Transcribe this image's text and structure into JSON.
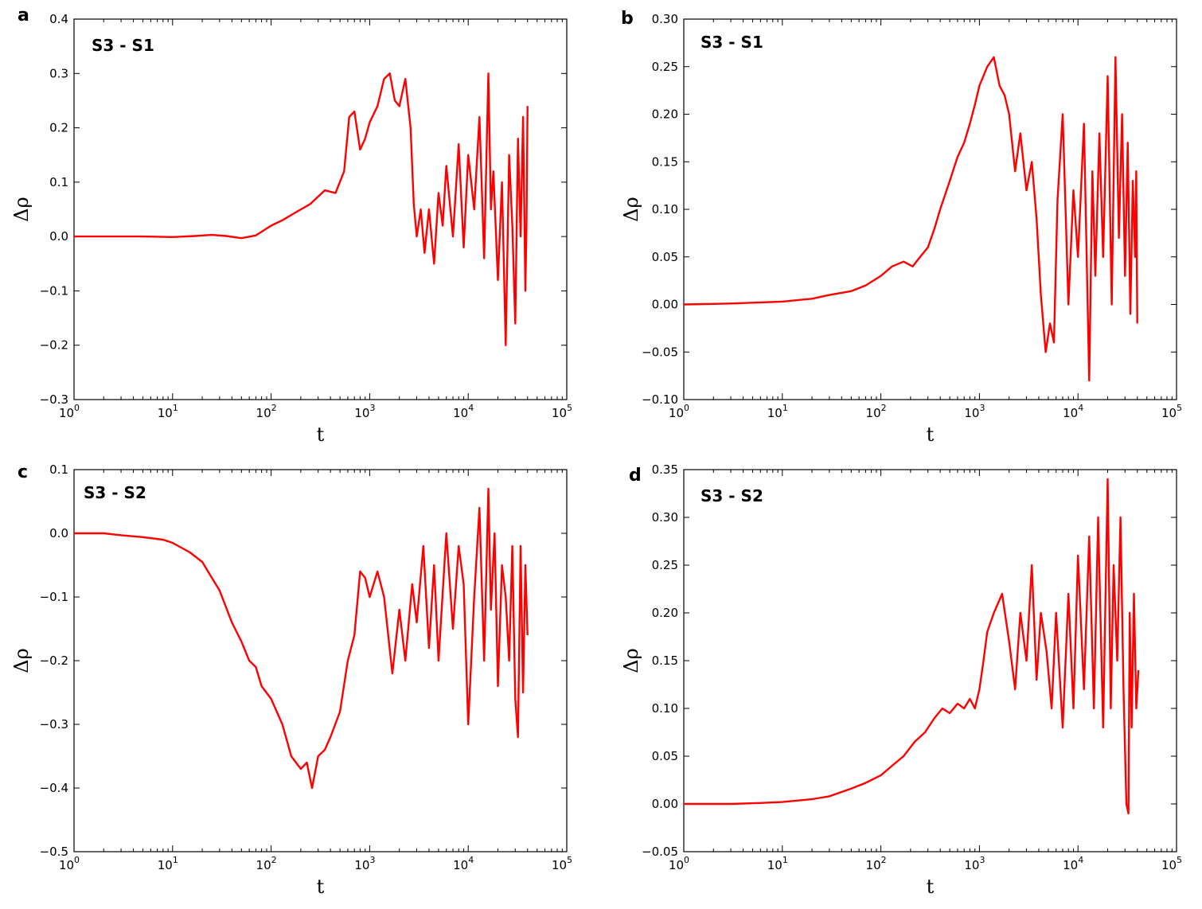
{
  "chart_data": [
    {
      "panel": "a",
      "type": "line",
      "annotation": "S3 - S1",
      "xlabel": "t",
      "ylabel": "Δρ",
      "xscale": "log",
      "xlim": [
        1,
        100000
      ],
      "ylim": [
        -0.3,
        0.4
      ],
      "yticks": [
        "−0.3",
        "−0.2",
        "−0.1",
        "0.0",
        "0.1",
        "0.2",
        "0.3",
        "0.4"
      ],
      "xticks": [
        {
          "base": "10",
          "exp": "0"
        },
        {
          "base": "10",
          "exp": "1"
        },
        {
          "base": "10",
          "exp": "2"
        },
        {
          "base": "10",
          "exp": "3"
        },
        {
          "base": "10",
          "exp": "4"
        },
        {
          "base": "10",
          "exp": "5"
        }
      ],
      "grid": false,
      "color": "#ff0000",
      "series": [
        {
          "x": [
            1,
            5,
            10,
            17,
            25,
            35,
            50,
            70,
            100,
            130,
            180,
            250,
            350,
            450,
            550,
            620,
            700,
            800,
            900,
            1000,
            1200,
            1400,
            1600,
            1800,
            2000,
            2300,
            2600,
            2800,
            3000,
            3300,
            3600,
            4000,
            4500,
            5000,
            5500,
            6000,
            7000,
            8000,
            9000,
            10000,
            11500,
            13000,
            14500,
            16000,
            17000,
            18000,
            20000,
            22000,
            24000,
            26000,
            28000,
            30000,
            32000,
            34000,
            36000,
            38000,
            39000,
            40000
          ],
          "y": [
            0.0,
            0.0,
            -0.001,
            0.001,
            0.003,
            0.001,
            -0.003,
            0.002,
            0.02,
            0.03,
            0.045,
            0.06,
            0.085,
            0.08,
            0.12,
            0.22,
            0.23,
            0.16,
            0.18,
            0.21,
            0.24,
            0.29,
            0.3,
            0.25,
            0.24,
            0.29,
            0.2,
            0.06,
            0.0,
            0.05,
            -0.03,
            0.05,
            -0.05,
            0.08,
            0.02,
            0.13,
            0.0,
            0.17,
            -0.02,
            0.15,
            0.05,
            0.22,
            -0.04,
            0.3,
            0.05,
            0.12,
            -0.08,
            0.1,
            -0.2,
            0.15,
            0.02,
            -0.16,
            0.18,
            0.0,
            0.22,
            -0.1,
            0.02,
            0.24
          ]
        }
      ]
    },
    {
      "panel": "b",
      "type": "line",
      "annotation": "S3 - S1",
      "xlabel": "t",
      "ylabel": "Δρ",
      "xscale": "log",
      "xlim": [
        1,
        100000
      ],
      "ylim": [
        -0.1,
        0.3
      ],
      "yticks": [
        "−0.10",
        "−0.05",
        "0.00",
        "0.05",
        "0.10",
        "0.15",
        "0.20",
        "0.25",
        "0.30"
      ],
      "xticks": [
        {
          "base": "10",
          "exp": "0"
        },
        {
          "base": "10",
          "exp": "1"
        },
        {
          "base": "10",
          "exp": "2"
        },
        {
          "base": "10",
          "exp": "3"
        },
        {
          "base": "10",
          "exp": "4"
        },
        {
          "base": "10",
          "exp": "5"
        }
      ],
      "grid": false,
      "color": "#ff0000",
      "series": [
        {
          "x": [
            1,
            3,
            10,
            20,
            30,
            50,
            70,
            100,
            130,
            170,
            210,
            250,
            300,
            350,
            400,
            500,
            600,
            700,
            800,
            900,
            1000,
            1200,
            1400,
            1600,
            1800,
            2000,
            2300,
            2600,
            3000,
            3400,
            3800,
            4200,
            4700,
            5200,
            5700,
            6200,
            7000,
            8000,
            9000,
            10000,
            11500,
            13000,
            14000,
            15000,
            16500,
            18000,
            20000,
            22000,
            24000,
            26000,
            28000,
            30000,
            32000,
            34000,
            36000,
            38000,
            39000,
            40000
          ],
          "y": [
            0.0,
            0.001,
            0.003,
            0.006,
            0.01,
            0.014,
            0.02,
            0.03,
            0.04,
            0.045,
            0.04,
            0.05,
            0.06,
            0.08,
            0.1,
            0.13,
            0.155,
            0.17,
            0.19,
            0.21,
            0.23,
            0.25,
            0.26,
            0.23,
            0.22,
            0.2,
            0.14,
            0.18,
            0.12,
            0.15,
            0.09,
            0.01,
            -0.05,
            -0.02,
            -0.04,
            0.11,
            0.2,
            0.0,
            0.12,
            0.05,
            0.19,
            -0.08,
            0.14,
            0.03,
            0.18,
            0.05,
            0.24,
            0.0,
            0.26,
            0.07,
            0.2,
            0.03,
            0.17,
            -0.01,
            0.13,
            0.05,
            0.14,
            -0.02
          ]
        }
      ]
    },
    {
      "panel": "c",
      "type": "line",
      "annotation": "S3 - S2",
      "xlabel": "t",
      "ylabel": "Δρ",
      "xscale": "log",
      "xlim": [
        1,
        100000
      ],
      "ylim": [
        -0.5,
        0.1
      ],
      "yticks": [
        "−0.5",
        "−0.4",
        "−0.3",
        "−0.2",
        "−0.1",
        "0.0",
        "0.1"
      ],
      "xticks": [
        {
          "base": "10",
          "exp": "0"
        },
        {
          "base": "10",
          "exp": "1"
        },
        {
          "base": "10",
          "exp": "2"
        },
        {
          "base": "10",
          "exp": "3"
        },
        {
          "base": "10",
          "exp": "4"
        },
        {
          "base": "10",
          "exp": "5"
        }
      ],
      "grid": false,
      "color": "#ff0000",
      "series": [
        {
          "x": [
            1,
            2,
            3,
            5,
            8,
            10,
            15,
            20,
            30,
            40,
            50,
            60,
            70,
            80,
            100,
            130,
            160,
            200,
            230,
            260,
            300,
            350,
            400,
            500,
            600,
            700,
            800,
            900,
            1000,
            1200,
            1400,
            1700,
            2000,
            2300,
            2700,
            3000,
            3500,
            4000,
            4500,
            5000,
            6000,
            7000,
            8000,
            9000,
            10000,
            11500,
            13000,
            14500,
            16000,
            17000,
            18500,
            20000,
            22000,
            24000,
            26000,
            28000,
            30000,
            32000,
            34000,
            36000,
            38000,
            40000
          ],
          "y": [
            0.0,
            0.0,
            -0.003,
            -0.006,
            -0.01,
            -0.015,
            -0.03,
            -0.045,
            -0.09,
            -0.14,
            -0.17,
            -0.2,
            -0.21,
            -0.24,
            -0.26,
            -0.3,
            -0.35,
            -0.37,
            -0.36,
            -0.4,
            -0.35,
            -0.34,
            -0.32,
            -0.28,
            -0.2,
            -0.16,
            -0.06,
            -0.07,
            -0.1,
            -0.06,
            -0.1,
            -0.22,
            -0.12,
            -0.2,
            -0.08,
            -0.14,
            -0.02,
            -0.18,
            -0.05,
            -0.2,
            0.0,
            -0.15,
            -0.02,
            -0.08,
            -0.3,
            -0.1,
            0.04,
            -0.2,
            0.07,
            -0.12,
            0.0,
            -0.24,
            -0.05,
            -0.1,
            -0.2,
            -0.02,
            -0.26,
            -0.32,
            -0.02,
            -0.25,
            -0.05,
            -0.16
          ]
        }
      ]
    },
    {
      "panel": "d",
      "type": "line",
      "annotation": "S3 - S2",
      "xlabel": "t",
      "ylabel": "Δρ",
      "xscale": "log",
      "xlim": [
        1,
        100000
      ],
      "ylim": [
        -0.05,
        0.35
      ],
      "yticks": [
        "−0.05",
        "0.00",
        "0.05",
        "0.10",
        "0.15",
        "0.20",
        "0.25",
        "0.30",
        "0.35"
      ],
      "xticks": [
        {
          "base": "10",
          "exp": "0"
        },
        {
          "base": "10",
          "exp": "1"
        },
        {
          "base": "10",
          "exp": "2"
        },
        {
          "base": "10",
          "exp": "3"
        },
        {
          "base": "10",
          "exp": "4"
        },
        {
          "base": "10",
          "exp": "5"
        }
      ],
      "grid": false,
      "color": "#ff0000",
      "series": [
        {
          "x": [
            1,
            3,
            6,
            10,
            20,
            30,
            50,
            70,
            100,
            130,
            170,
            220,
            280,
            350,
            420,
            500,
            600,
            700,
            800,
            900,
            1000,
            1100,
            1200,
            1400,
            1700,
            2000,
            2300,
            2600,
            3000,
            3400,
            3800,
            4200,
            4800,
            5400,
            6000,
            7000,
            8000,
            9000,
            10000,
            11500,
            13000,
            14500,
            16000,
            18000,
            20000,
            21500,
            23000,
            25000,
            27000,
            29000,
            31000,
            32500,
            33500,
            35000,
            37000,
            39000,
            41000
          ],
          "y": [
            0.0,
            0.0,
            0.001,
            0.002,
            0.005,
            0.008,
            0.016,
            0.022,
            0.03,
            0.04,
            0.05,
            0.065,
            0.075,
            0.09,
            0.1,
            0.095,
            0.105,
            0.1,
            0.11,
            0.1,
            0.12,
            0.15,
            0.18,
            0.2,
            0.22,
            0.17,
            0.12,
            0.2,
            0.15,
            0.25,
            0.13,
            0.2,
            0.16,
            0.1,
            0.2,
            0.08,
            0.22,
            0.1,
            0.26,
            0.12,
            0.28,
            0.1,
            0.3,
            0.08,
            0.34,
            0.1,
            0.25,
            0.15,
            0.3,
            0.12,
            0.0,
            -0.01,
            0.2,
            0.08,
            0.22,
            0.1,
            0.14
          ]
        }
      ]
    }
  ]
}
